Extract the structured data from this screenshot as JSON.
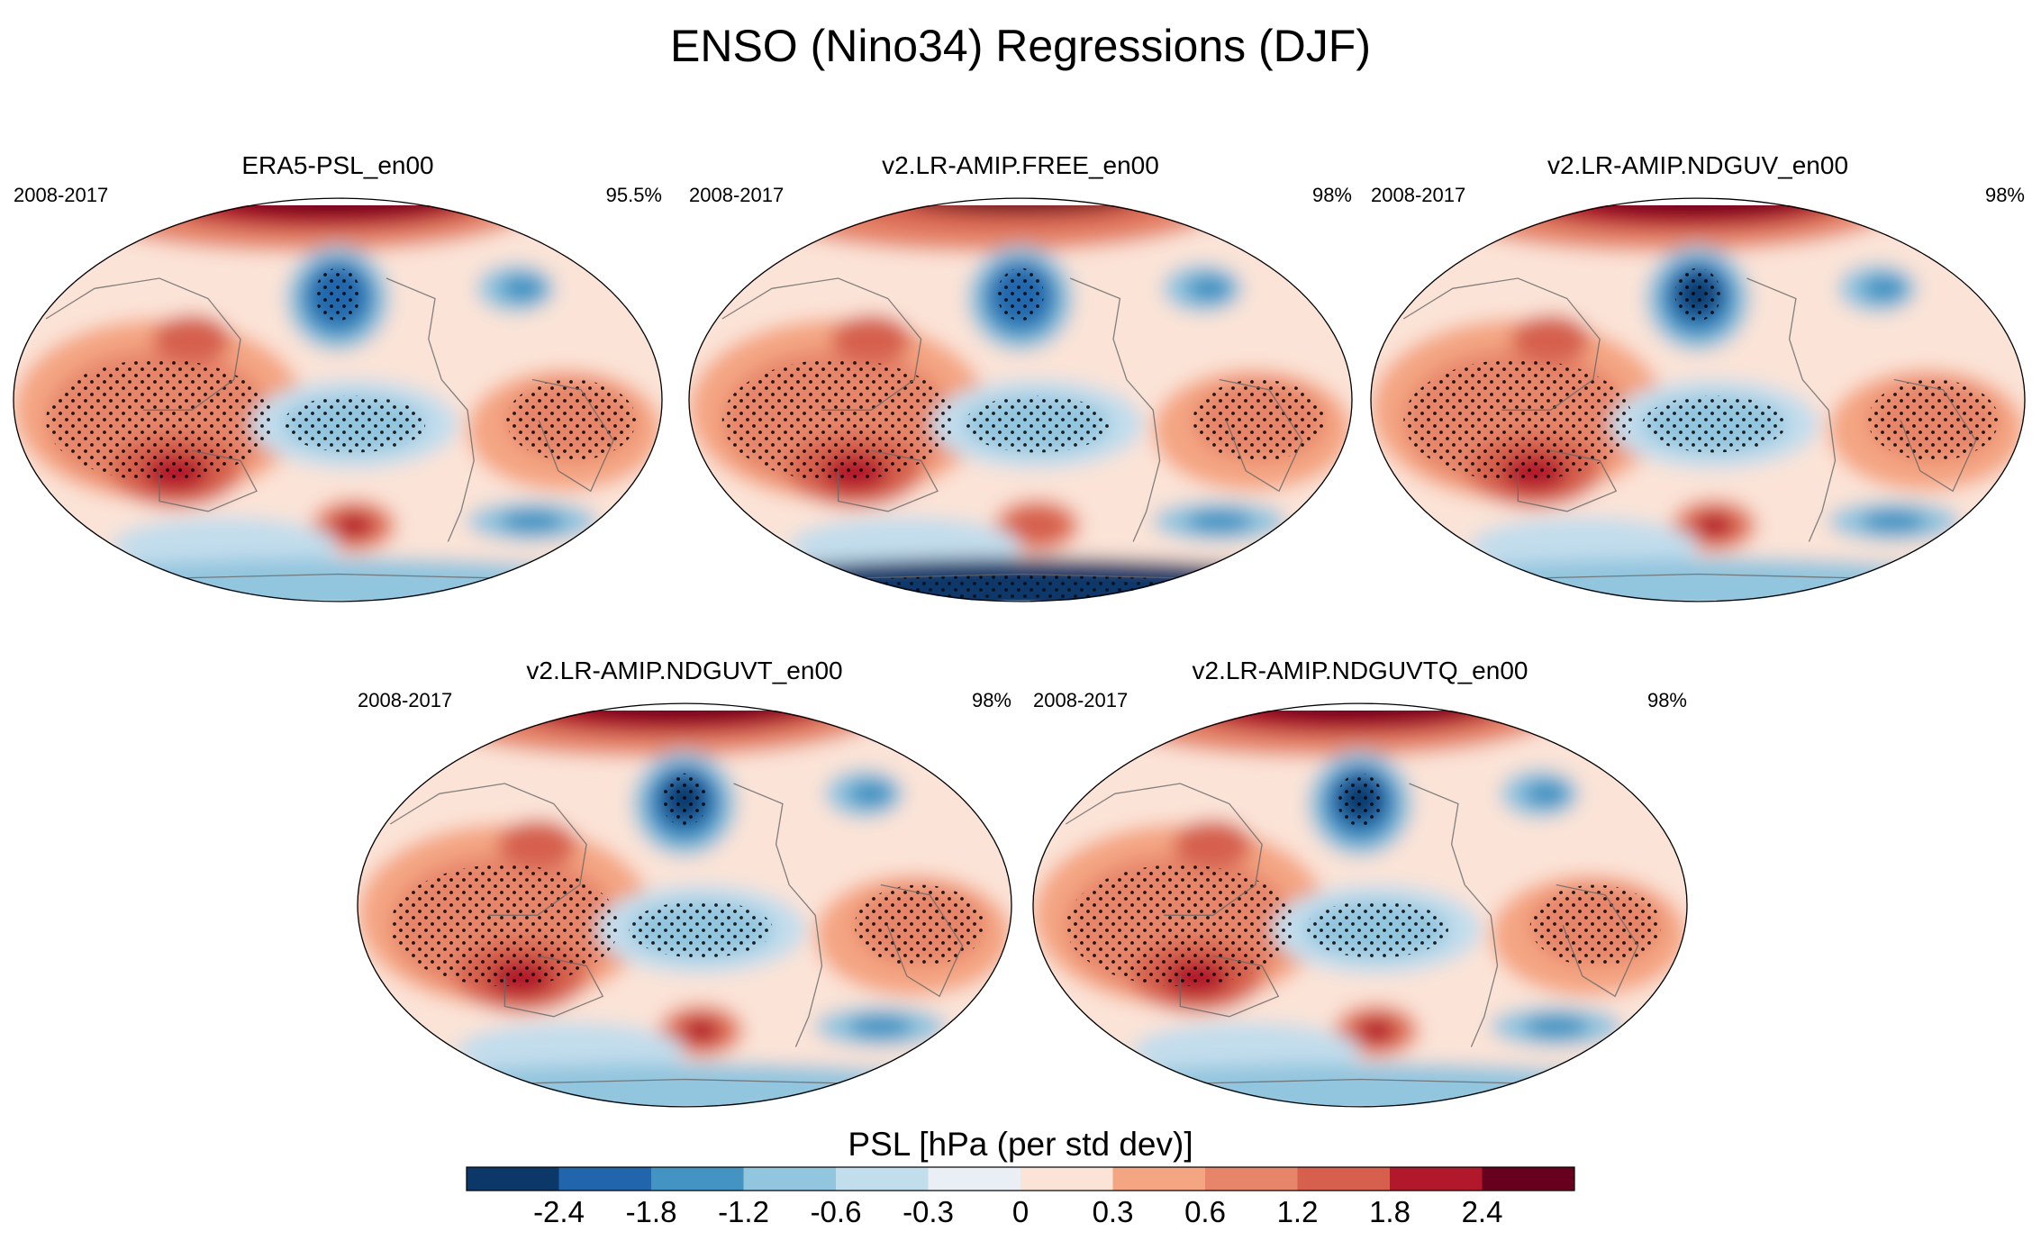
{
  "figure": {
    "title": "ENSO (Nino34) Regressions (DJF)"
  },
  "chart_data": {
    "type": "heatmap",
    "title": "ENSO (Nino34) Regressions (DJF)",
    "variable": "PSL",
    "units": "hPa (per std dev)",
    "projection": "global map, Pacific-centered",
    "stippling": "dots mark statistically significant regions",
    "panels": [
      {
        "name": "ERA5-PSL_en00",
        "period": "2008-2017",
        "value_label": "95.5%",
        "north_pacific_low": -2.4,
        "tropical_west_high": 1.5,
        "south_pacific_high": 1.9,
        "antarctic": -0.9
      },
      {
        "name": "v2.LR-AMIP.FREE_en00",
        "period": "2008-2017",
        "value_label": "98%",
        "north_pacific_low": -2.3,
        "tropical_west_high": 1.2,
        "south_pacific_high": 1.4,
        "antarctic": -2.6
      },
      {
        "name": "v2.LR-AMIP.NDGUV_en00",
        "period": "2008-2017",
        "value_label": "98%",
        "north_pacific_low": -2.6,
        "tropical_west_high": 1.6,
        "south_pacific_high": 2.1,
        "antarctic": -0.8
      },
      {
        "name": "v2.LR-AMIP.NDGUVT_en00",
        "period": "2008-2017",
        "value_label": "98%",
        "north_pacific_low": -2.6,
        "tropical_west_high": 1.6,
        "south_pacific_high": 2.2,
        "antarctic": -0.8
      },
      {
        "name": "v2.LR-AMIP.NDGUVTQ_en00",
        "period": "2008-2017",
        "value_label": "98%",
        "north_pacific_low": -2.6,
        "tropical_west_high": 1.6,
        "south_pacific_high": 2.1,
        "antarctic": -0.8
      }
    ],
    "colorbar": {
      "title": "PSL [hPa (per std dev)]",
      "levels": [
        -2.4,
        -1.8,
        -1.2,
        -0.6,
        -0.3,
        0,
        0.3,
        0.6,
        1.2,
        1.8,
        2.4
      ],
      "tick_labels": [
        "-2.4",
        "-1.8",
        "-1.2",
        "-0.6",
        "-0.3",
        "0",
        "0.3",
        "0.6",
        "1.2",
        "1.8",
        "2.4"
      ],
      "colors": [
        "#0b3769",
        "#2166ac",
        "#4393c3",
        "#92c5de",
        "#c2ddec",
        "#eaeef5",
        "#fbe3d7",
        "#f4a582",
        "#e6856a",
        "#d6604d",
        "#b2182b",
        "#67001f"
      ]
    }
  }
}
